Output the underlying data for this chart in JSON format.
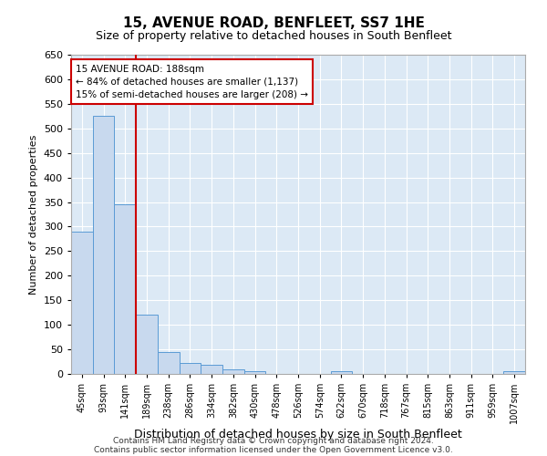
{
  "title": "15, AVENUE ROAD, BENFLEET, SS7 1HE",
  "subtitle": "Size of property relative to detached houses in South Benfleet",
  "xlabel": "Distribution of detached houses by size in South Benfleet",
  "ylabel": "Number of detached properties",
  "footnote1": "Contains HM Land Registry data © Crown copyright and database right 2024.",
  "footnote2": "Contains public sector information licensed under the Open Government Licence v3.0.",
  "annotation_title": "15 AVENUE ROAD: 188sqm",
  "annotation_line1": "← 84% of detached houses are smaller (1,137)",
  "annotation_line2": "15% of semi-detached houses are larger (208) →",
  "bar_color": "#c8d9ee",
  "bar_edge_color": "#5b9bd5",
  "vline_color": "#cc0000",
  "annotation_box_color": "#cc0000",
  "bg_color": "#dce9f5",
  "categories": [
    "45sqm",
    "93sqm",
    "141sqm",
    "189sqm",
    "238sqm",
    "286sqm",
    "334sqm",
    "382sqm",
    "430sqm",
    "478sqm",
    "526sqm",
    "574sqm",
    "622sqm",
    "670sqm",
    "718sqm",
    "767sqm",
    "815sqm",
    "863sqm",
    "911sqm",
    "959sqm",
    "1007sqm"
  ],
  "values": [
    290,
    525,
    345,
    120,
    45,
    22,
    18,
    10,
    5,
    0,
    0,
    0,
    5,
    0,
    0,
    0,
    0,
    0,
    0,
    0,
    5
  ],
  "ylim": [
    0,
    650
  ],
  "yticks": [
    0,
    50,
    100,
    150,
    200,
    250,
    300,
    350,
    400,
    450,
    500,
    550,
    600,
    650
  ],
  "vline_pos": 2.5,
  "grid_color": "#ffffff",
  "title_fontsize": 11,
  "subtitle_fontsize": 9,
  "ylabel_fontsize": 8,
  "xlabel_fontsize": 9,
  "tick_fontsize": 8,
  "xtick_fontsize": 7,
  "annotation_fontsize": 7.5,
  "footnote_fontsize": 6.5
}
